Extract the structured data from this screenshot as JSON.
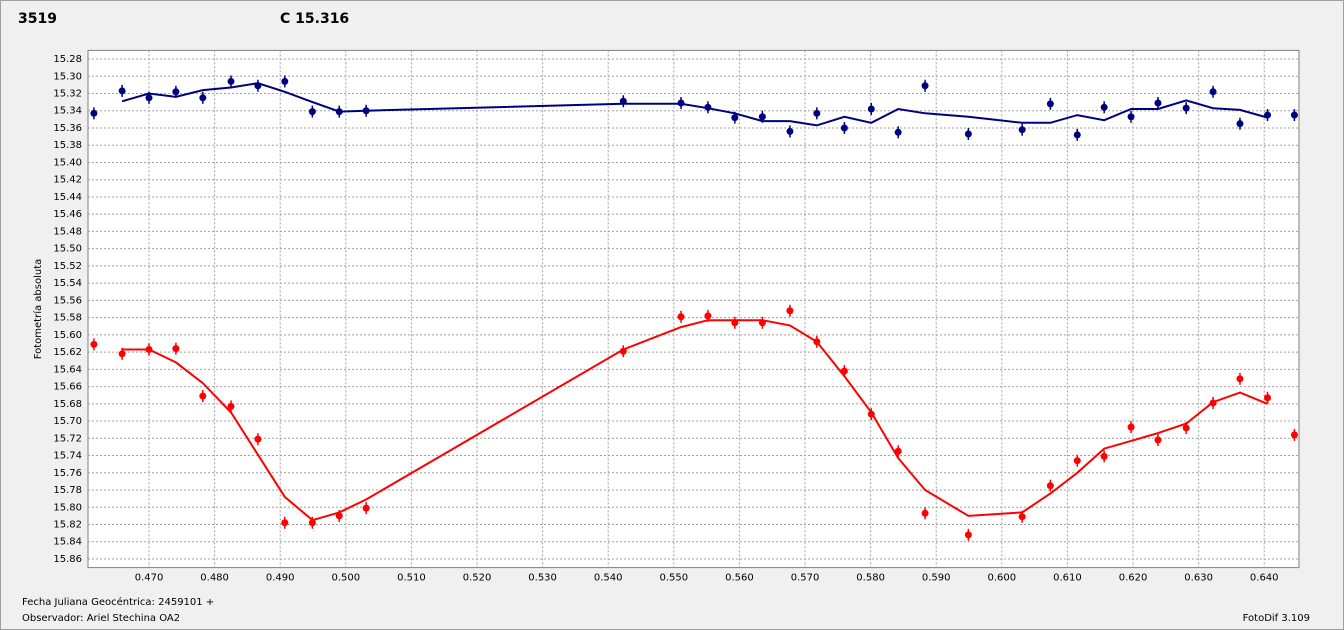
{
  "chart_data": {
    "type": "line",
    "title": "3519",
    "title_color": "#ff0000",
    "subtitle": "C 15.316",
    "subtitle_color": "#00007f",
    "ylabel": "Fotometría absoluta",
    "annotations": [
      "Fecha Juliana Geocéntrica: 2459101 +",
      "Observador: Ariel Stechina OA2",
      "FotoDif 3.109"
    ],
    "y_inverted": true,
    "grid": true,
    "xlim": [
      0.4607,
      0.6453
    ],
    "ylim": [
      15.27,
      15.87
    ],
    "xticks": [
      {
        "value": 0.47,
        "label": "0.470"
      },
      {
        "value": 0.48,
        "label": "0.480"
      },
      {
        "value": 0.49,
        "label": "0.490"
      },
      {
        "value": 0.5,
        "label": "0.500"
      },
      {
        "value": 0.51,
        "label": "0.510"
      },
      {
        "value": 0.52,
        "label": "0.520"
      },
      {
        "value": 0.53,
        "label": "0.530"
      },
      {
        "value": 0.54,
        "label": "0.540"
      },
      {
        "value": 0.55,
        "label": "0.550"
      },
      {
        "value": 0.56,
        "label": "0.560"
      },
      {
        "value": 0.57,
        "label": "0.570"
      },
      {
        "value": 0.58,
        "label": "0.580"
      },
      {
        "value": 0.59,
        "label": "0.590"
      },
      {
        "value": 0.6,
        "label": "0.600"
      },
      {
        "value": 0.61,
        "label": "0.610"
      },
      {
        "value": 0.62,
        "label": "0.620"
      },
      {
        "value": 0.63,
        "label": "0.630"
      },
      {
        "value": 0.64,
        "label": "0.640"
      }
    ],
    "yticks": [
      15.28,
      {
        "value": 15.3,
        "label": "15.30"
      },
      15.32,
      15.34,
      15.36,
      15.38,
      {
        "value": 15.4,
        "label": "15.40"
      },
      15.42,
      15.44,
      15.46,
      15.48,
      {
        "value": 15.5,
        "label": "15.50"
      },
      15.52,
      15.54,
      15.56,
      15.58,
      {
        "value": 15.6,
        "label": "15.60"
      },
      15.62,
      15.64,
      15.66,
      15.68,
      {
        "value": 15.7,
        "label": "15.70"
      },
      15.72,
      15.74,
      15.76,
      15.78,
      {
        "value": 15.8,
        "label": "15.80"
      },
      15.82,
      15.84,
      15.86
    ],
    "x": [
      0.4616,
      0.4659,
      0.47,
      0.4741,
      0.4782,
      0.4825,
      0.4866,
      0.4907,
      0.4949,
      0.499,
      0.5031,
      0.5423,
      0.5511,
      0.5552,
      0.5593,
      0.5635,
      0.5677,
      0.5718,
      0.576,
      0.5801,
      0.5842,
      0.5883,
      0.5949,
      0.6031,
      0.6074,
      0.6115,
      0.6156,
      0.6197,
      0.6238,
      0.6281,
      0.6322,
      0.6363,
      0.6405,
      0.6446
    ],
    "series": [
      {
        "kind": "points",
        "color": "#00007f",
        "values": [
          15.343,
          15.317,
          15.325,
          15.318,
          15.325,
          15.306,
          15.311,
          15.306,
          15.341,
          15.341,
          15.34,
          15.329,
          15.331,
          15.336,
          15.348,
          15.347,
          15.364,
          15.343,
          15.36,
          15.338,
          15.365,
          15.311,
          15.367,
          15.362,
          15.332,
          15.368,
          15.336,
          15.347,
          15.331,
          15.337,
          15.318,
          15.355,
          15.345,
          15.345
        ]
      },
      {
        "kind": "line",
        "color": "#00007f",
        "values": [
          null,
          15.329,
          15.32,
          15.324,
          15.316,
          15.313,
          15.308,
          15.318,
          15.33,
          15.341,
          15.34,
          15.332,
          15.332,
          15.337,
          15.343,
          15.352,
          15.352,
          15.357,
          15.347,
          15.354,
          15.338,
          15.343,
          15.347,
          15.354,
          15.354,
          15.345,
          15.351,
          15.338,
          15.338,
          15.328,
          15.337,
          15.339,
          15.348,
          null
        ]
      },
      {
        "kind": "points",
        "color": "#ff0000",
        "values": [
          15.611,
          15.622,
          15.617,
          15.616,
          15.671,
          15.683,
          15.721,
          15.818,
          15.818,
          15.81,
          15.801,
          15.619,
          15.579,
          15.578,
          15.586,
          15.586,
          15.572,
          15.608,
          15.642,
          15.692,
          15.735,
          15.807,
          15.832,
          15.811,
          15.775,
          15.746,
          15.741,
          15.707,
          15.722,
          15.708,
          15.679,
          15.651,
          15.673,
          15.716
        ]
      },
      {
        "kind": "line",
        "color": "#ff0000",
        "values": [
          null,
          15.617,
          15.617,
          15.632,
          15.656,
          15.69,
          15.739,
          15.788,
          15.815,
          15.806,
          15.791,
          15.617,
          15.591,
          15.583,
          15.583,
          15.583,
          15.589,
          15.608,
          15.648,
          15.69,
          15.743,
          15.78,
          15.81,
          15.806,
          15.784,
          15.76,
          15.732,
          15.723,
          15.714,
          15.703,
          15.678,
          15.667,
          15.68,
          null
        ]
      }
    ]
  }
}
